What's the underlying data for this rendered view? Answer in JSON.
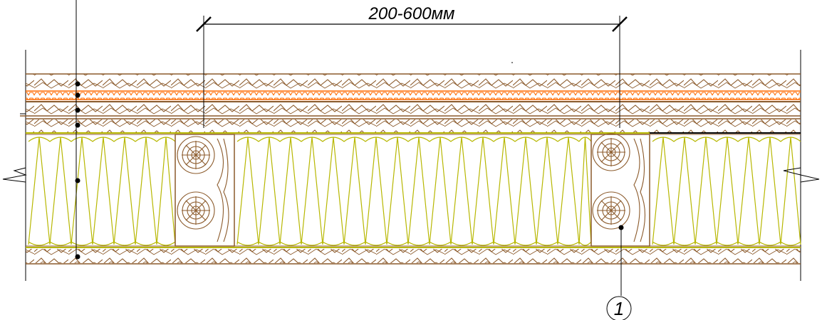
{
  "dimension": {
    "label": "200-600мм"
  },
  "callout": {
    "label": "1"
  },
  "colors": {
    "wood_line": "#8B5A2B",
    "wood_fill": "#ffffff",
    "membrane": "#FF6A00",
    "insulation": "#B7B700",
    "ink": "#000000"
  },
  "icons": {
    "break_mark": "zigzag-break-icon",
    "joint_marker": "dot-marker-icon"
  }
}
